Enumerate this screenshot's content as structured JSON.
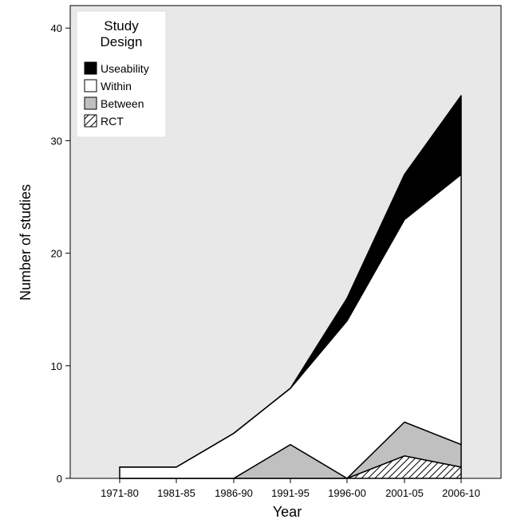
{
  "chart_data": {
    "type": "area",
    "stacked": true,
    "xlabel": "Year",
    "ylabel": "Number of studies",
    "categories": [
      "1971-80",
      "1981-85",
      "1986-90",
      "1991-95",
      "1996-00",
      "2001-05",
      "2006-10"
    ],
    "ylim": [
      0,
      42
    ],
    "yticks": [
      0,
      10,
      20,
      30,
      40
    ],
    "grid": false,
    "background": "#e8e8e8",
    "legend": {
      "title_lines": [
        "Study",
        "Design"
      ],
      "placement": "top-left"
    },
    "series": [
      {
        "name": "RCT",
        "values": [
          0,
          0,
          0,
          0,
          0,
          2,
          1
        ],
        "fill": "hatched",
        "color": "#000000"
      },
      {
        "name": "Between",
        "values": [
          0,
          0,
          0,
          3,
          0,
          3,
          2
        ],
        "fill": "#c0c0c0"
      },
      {
        "name": "Within",
        "values": [
          1,
          1,
          4,
          5,
          14,
          18,
          24
        ],
        "fill": "#ffffff"
      },
      {
        "name": "Useability",
        "values": [
          0,
          0,
          0,
          0,
          2,
          4,
          7
        ],
        "fill": "#000000"
      }
    ]
  }
}
